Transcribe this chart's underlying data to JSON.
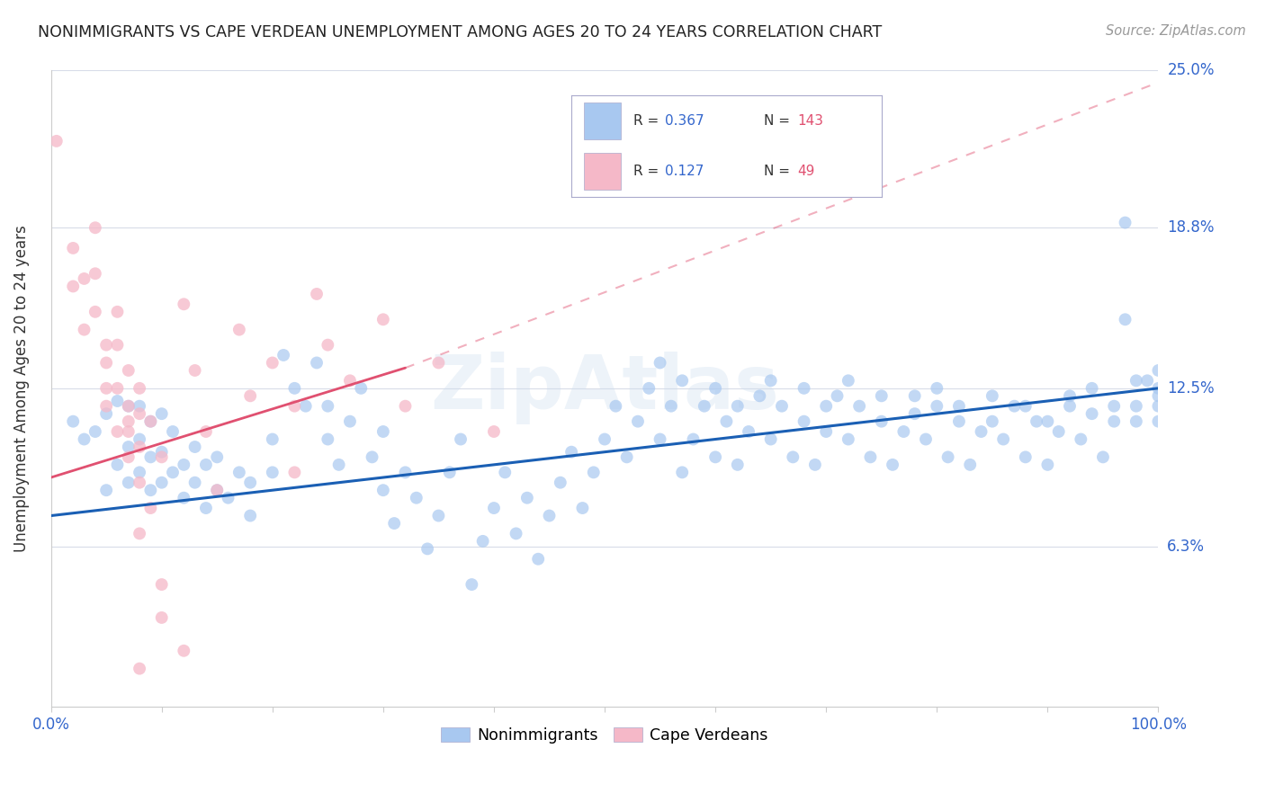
{
  "title": "NONIMMIGRANTS VS CAPE VERDEAN UNEMPLOYMENT AMONG AGES 20 TO 24 YEARS CORRELATION CHART",
  "source": "Source: ZipAtlas.com",
  "ylabel": "Unemployment Among Ages 20 to 24 years",
  "xlim": [
    0,
    1.0
  ],
  "ylim": [
    0,
    0.25
  ],
  "yticks": [
    0.0,
    0.063,
    0.125,
    0.188,
    0.25
  ],
  "ytick_labels": [
    "",
    "6.3%",
    "12.5%",
    "18.8%",
    "25.0%"
  ],
  "nonimmigrants_color": "#a8c8f0",
  "nonimmigrants_line_color": "#1a5fb4",
  "cape_verdeans_color": "#f5b8c8",
  "cape_verdeans_line_color": "#e05070",
  "background_color": "#ffffff",
  "grid_color": "#d8dce8",
  "watermark": "ZipAtlas",
  "ni_trend": [
    0.0,
    0.075,
    1.0,
    0.125
  ],
  "cv_trend_solid": [
    0.0,
    0.09,
    0.32,
    0.133
  ],
  "cv_trend_dash": [
    0.0,
    0.09,
    1.0,
    0.245
  ],
  "nonimmigrant_points": [
    [
      0.02,
      0.112
    ],
    [
      0.03,
      0.105
    ],
    [
      0.04,
      0.108
    ],
    [
      0.05,
      0.085
    ],
    [
      0.05,
      0.115
    ],
    [
      0.06,
      0.095
    ],
    [
      0.06,
      0.12
    ],
    [
      0.07,
      0.088
    ],
    [
      0.07,
      0.102
    ],
    [
      0.07,
      0.118
    ],
    [
      0.08,
      0.092
    ],
    [
      0.08,
      0.105
    ],
    [
      0.08,
      0.118
    ],
    [
      0.09,
      0.085
    ],
    [
      0.09,
      0.098
    ],
    [
      0.09,
      0.112
    ],
    [
      0.1,
      0.088
    ],
    [
      0.1,
      0.1
    ],
    [
      0.1,
      0.115
    ],
    [
      0.11,
      0.092
    ],
    [
      0.11,
      0.108
    ],
    [
      0.12,
      0.082
    ],
    [
      0.12,
      0.095
    ],
    [
      0.13,
      0.088
    ],
    [
      0.13,
      0.102
    ],
    [
      0.14,
      0.078
    ],
    [
      0.14,
      0.095
    ],
    [
      0.15,
      0.085
    ],
    [
      0.15,
      0.098
    ],
    [
      0.16,
      0.082
    ],
    [
      0.17,
      0.092
    ],
    [
      0.18,
      0.075
    ],
    [
      0.18,
      0.088
    ],
    [
      0.2,
      0.092
    ],
    [
      0.2,
      0.105
    ],
    [
      0.21,
      0.138
    ],
    [
      0.22,
      0.125
    ],
    [
      0.23,
      0.118
    ],
    [
      0.24,
      0.135
    ],
    [
      0.25,
      0.105
    ],
    [
      0.25,
      0.118
    ],
    [
      0.26,
      0.095
    ],
    [
      0.27,
      0.112
    ],
    [
      0.28,
      0.125
    ],
    [
      0.29,
      0.098
    ],
    [
      0.3,
      0.085
    ],
    [
      0.3,
      0.108
    ],
    [
      0.31,
      0.072
    ],
    [
      0.32,
      0.092
    ],
    [
      0.33,
      0.082
    ],
    [
      0.34,
      0.062
    ],
    [
      0.35,
      0.075
    ],
    [
      0.36,
      0.092
    ],
    [
      0.37,
      0.105
    ],
    [
      0.38,
      0.048
    ],
    [
      0.39,
      0.065
    ],
    [
      0.4,
      0.078
    ],
    [
      0.41,
      0.092
    ],
    [
      0.42,
      0.068
    ],
    [
      0.43,
      0.082
    ],
    [
      0.44,
      0.058
    ],
    [
      0.45,
      0.075
    ],
    [
      0.46,
      0.088
    ],
    [
      0.47,
      0.1
    ],
    [
      0.48,
      0.078
    ],
    [
      0.49,
      0.092
    ],
    [
      0.5,
      0.105
    ],
    [
      0.51,
      0.118
    ],
    [
      0.52,
      0.098
    ],
    [
      0.53,
      0.112
    ],
    [
      0.54,
      0.125
    ],
    [
      0.55,
      0.105
    ],
    [
      0.56,
      0.118
    ],
    [
      0.57,
      0.092
    ],
    [
      0.58,
      0.105
    ],
    [
      0.59,
      0.118
    ],
    [
      0.6,
      0.098
    ],
    [
      0.61,
      0.112
    ],
    [
      0.62,
      0.095
    ],
    [
      0.63,
      0.108
    ],
    [
      0.64,
      0.122
    ],
    [
      0.65,
      0.105
    ],
    [
      0.66,
      0.118
    ],
    [
      0.67,
      0.098
    ],
    [
      0.68,
      0.112
    ],
    [
      0.69,
      0.095
    ],
    [
      0.7,
      0.108
    ],
    [
      0.71,
      0.122
    ],
    [
      0.72,
      0.105
    ],
    [
      0.73,
      0.118
    ],
    [
      0.74,
      0.098
    ],
    [
      0.75,
      0.112
    ],
    [
      0.76,
      0.095
    ],
    [
      0.77,
      0.108
    ],
    [
      0.78,
      0.122
    ],
    [
      0.79,
      0.105
    ],
    [
      0.8,
      0.118
    ],
    [
      0.81,
      0.098
    ],
    [
      0.82,
      0.112
    ],
    [
      0.83,
      0.095
    ],
    [
      0.84,
      0.108
    ],
    [
      0.85,
      0.122
    ],
    [
      0.86,
      0.105
    ],
    [
      0.87,
      0.118
    ],
    [
      0.88,
      0.098
    ],
    [
      0.89,
      0.112
    ],
    [
      0.9,
      0.095
    ],
    [
      0.91,
      0.108
    ],
    [
      0.92,
      0.122
    ],
    [
      0.93,
      0.105
    ],
    [
      0.94,
      0.115
    ],
    [
      0.95,
      0.098
    ],
    [
      0.96,
      0.112
    ],
    [
      0.97,
      0.19
    ],
    [
      0.97,
      0.152
    ],
    [
      0.98,
      0.128
    ],
    [
      0.98,
      0.118
    ],
    [
      0.99,
      0.128
    ],
    [
      1.0,
      0.132
    ],
    [
      1.0,
      0.122
    ],
    [
      1.0,
      0.112
    ],
    [
      1.0,
      0.125
    ],
    [
      0.55,
      0.135
    ],
    [
      0.57,
      0.128
    ],
    [
      0.6,
      0.125
    ],
    [
      0.62,
      0.118
    ],
    [
      0.65,
      0.128
    ],
    [
      0.68,
      0.125
    ],
    [
      0.7,
      0.118
    ],
    [
      0.72,
      0.128
    ],
    [
      0.75,
      0.122
    ],
    [
      0.78,
      0.115
    ],
    [
      0.8,
      0.125
    ],
    [
      0.82,
      0.118
    ],
    [
      0.85,
      0.112
    ],
    [
      0.88,
      0.118
    ],
    [
      0.9,
      0.112
    ],
    [
      0.92,
      0.118
    ],
    [
      0.94,
      0.125
    ],
    [
      0.96,
      0.118
    ],
    [
      0.98,
      0.112
    ],
    [
      1.0,
      0.118
    ]
  ],
  "cape_verdean_points": [
    [
      0.005,
      0.222
    ],
    [
      0.02,
      0.165
    ],
    [
      0.02,
      0.18
    ],
    [
      0.03,
      0.148
    ],
    [
      0.03,
      0.168
    ],
    [
      0.04,
      0.155
    ],
    [
      0.04,
      0.17
    ],
    [
      0.04,
      0.188
    ],
    [
      0.05,
      0.125
    ],
    [
      0.05,
      0.142
    ],
    [
      0.05,
      0.118
    ],
    [
      0.05,
      0.135
    ],
    [
      0.06,
      0.108
    ],
    [
      0.06,
      0.125
    ],
    [
      0.06,
      0.142
    ],
    [
      0.06,
      0.155
    ],
    [
      0.07,
      0.118
    ],
    [
      0.07,
      0.132
    ],
    [
      0.07,
      0.112
    ],
    [
      0.07,
      0.098
    ],
    [
      0.07,
      0.108
    ],
    [
      0.08,
      0.125
    ],
    [
      0.08,
      0.115
    ],
    [
      0.08,
      0.102
    ],
    [
      0.08,
      0.088
    ],
    [
      0.08,
      0.068
    ],
    [
      0.08,
      0.015
    ],
    [
      0.09,
      0.112
    ],
    [
      0.09,
      0.078
    ],
    [
      0.1,
      0.098
    ],
    [
      0.1,
      0.048
    ],
    [
      0.1,
      0.035
    ],
    [
      0.12,
      0.158
    ],
    [
      0.12,
      0.022
    ],
    [
      0.13,
      0.132
    ],
    [
      0.14,
      0.108
    ],
    [
      0.15,
      0.085
    ],
    [
      0.17,
      0.148
    ],
    [
      0.18,
      0.122
    ],
    [
      0.2,
      0.135
    ],
    [
      0.22,
      0.118
    ],
    [
      0.22,
      0.092
    ],
    [
      0.24,
      0.162
    ],
    [
      0.25,
      0.142
    ],
    [
      0.27,
      0.128
    ],
    [
      0.3,
      0.152
    ],
    [
      0.32,
      0.118
    ],
    [
      0.35,
      0.135
    ],
    [
      0.4,
      0.108
    ]
  ]
}
